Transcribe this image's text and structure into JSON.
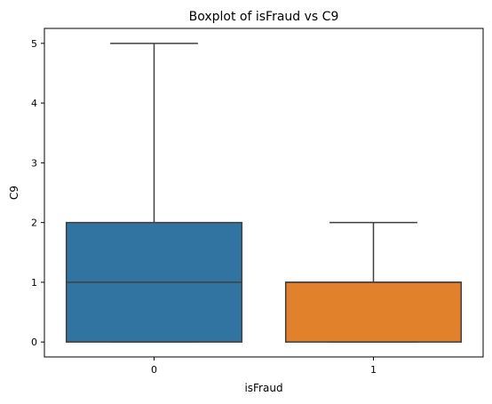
{
  "chart_data": {
    "type": "box",
    "title": "Boxplot of isFraud vs C9",
    "xlabel": "isFraud",
    "ylabel": "C9",
    "categories": [
      "0",
      "1"
    ],
    "boxes": [
      {
        "category": "0",
        "whisker_low": 0,
        "q1": 0,
        "median": 1,
        "q3": 2,
        "whisker_high": 5,
        "color": "#3274a1"
      },
      {
        "category": "1",
        "whisker_low": 0,
        "q1": 0,
        "median": 1,
        "q3": 1,
        "whisker_high": 2,
        "color": "#e1812c"
      }
    ],
    "yticks": [
      0,
      1,
      2,
      3,
      4,
      5
    ],
    "ylim": [
      -0.25,
      5.25
    ],
    "grid": false,
    "legend": "none"
  }
}
